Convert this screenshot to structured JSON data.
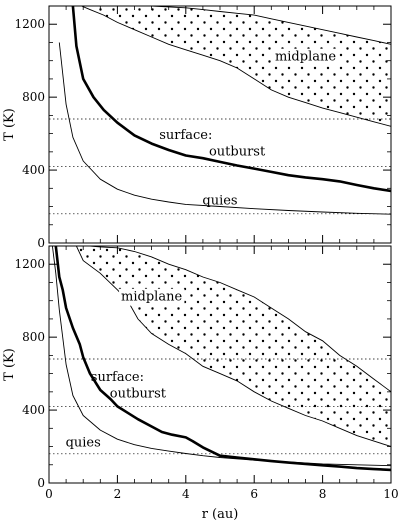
{
  "chart_data": [
    {
      "type": "line",
      "xlabel": "",
      "ylabel": "T (K)",
      "xlim": [
        0,
        10
      ],
      "ylim": [
        0,
        1300
      ],
      "x_ticks": [
        0,
        2,
        4,
        6,
        8,
        10
      ],
      "y_ticks": [
        0,
        400,
        800,
        1200
      ],
      "x_tick_labels": [
        "",
        "",
        "",
        "",
        "",
        ""
      ],
      "y_tick_labels": [
        "0",
        "400",
        "800",
        "1200"
      ],
      "reference_levels": [
        160,
        420,
        680,
        1300
      ],
      "series": [
        {
          "name": "quies",
          "style": "thin",
          "x": [
            0.3,
            0.5,
            0.7,
            1.0,
            1.5,
            2.0,
            2.5,
            3.0,
            3.5,
            4.0,
            5.0,
            6.0,
            7.0,
            8.0,
            9.0,
            10.0
          ],
          "y": [
            1100,
            760,
            580,
            450,
            350,
            295,
            262,
            240,
            225,
            212,
            200,
            188,
            178,
            170,
            163,
            158
          ]
        },
        {
          "name": "surface: outburst",
          "style": "thick",
          "x": [
            0.7,
            0.8,
            1.0,
            1.3,
            1.6,
            2.0,
            2.5,
            3.0,
            3.5,
            4.0,
            4.5,
            5.0,
            5.5,
            6.0,
            6.5,
            7.0,
            7.5,
            8.0,
            8.5,
            9.0,
            9.5,
            10.0
          ],
          "y": [
            1300,
            1080,
            900,
            800,
            730,
            660,
            590,
            545,
            510,
            480,
            465,
            445,
            425,
            408,
            390,
            372,
            360,
            350,
            338,
            318,
            300,
            285
          ]
        },
        {
          "name": "midplane",
          "style": "band",
          "x_upper": [
            3.0,
            3.5,
            4.0,
            4.5,
            5.0,
            5.5,
            6.0,
            6.5,
            7.0,
            7.5,
            8.0,
            8.5,
            9.0,
            9.5,
            10.0
          ],
          "y_upper": [
            1300,
            1295,
            1290,
            1280,
            1270,
            1260,
            1250,
            1230,
            1210,
            1190,
            1170,
            1150,
            1130,
            1110,
            1090
          ],
          "x_lower": [
            0.95,
            1.2,
            1.6,
            2.0,
            2.5,
            3.0,
            3.5,
            4.0,
            4.5,
            5.0,
            5.5,
            6.0,
            6.5,
            7.0,
            7.5,
            8.0,
            8.5,
            9.0,
            9.5,
            10.0
          ],
          "y_lower": [
            1300,
            1280,
            1250,
            1210,
            1170,
            1130,
            1090,
            1060,
            1030,
            1000,
            960,
            900,
            840,
            800,
            770,
            740,
            715,
            690,
            665,
            640
          ]
        }
      ],
      "annotations": [
        {
          "text": "midplane",
          "x": 7.5,
          "y": 1000
        },
        {
          "text": "surface:",
          "x": 4.0,
          "y": 570
        },
        {
          "text": "outburst",
          "x": 5.5,
          "y": 480
        },
        {
          "text": "quies",
          "x": 5.0,
          "y": 210
        }
      ]
    },
    {
      "type": "line",
      "xlabel": "r (au)",
      "ylabel": "T (K)",
      "xlim": [
        0,
        10
      ],
      "ylim": [
        0,
        1300
      ],
      "x_ticks": [
        0,
        2,
        4,
        6,
        8,
        10
      ],
      "y_ticks": [
        0,
        400,
        800,
        1200
      ],
      "x_tick_labels": [
        "0",
        "2",
        "4",
        "6",
        "8",
        "10"
      ],
      "y_tick_labels": [
        "0",
        "400",
        "800",
        "1200"
      ],
      "reference_levels": [
        160,
        420,
        680,
        1300
      ],
      "series": [
        {
          "name": "quies",
          "style": "thin",
          "x": [
            0.1,
            0.2,
            0.3,
            0.5,
            0.7,
            1.0,
            1.5,
            2.0,
            2.5,
            3.0,
            3.5,
            4.0,
            4.5,
            5.0,
            6.0,
            7.0,
            8.0,
            9.0,
            10.0
          ],
          "y": [
            1300,
            1150,
            950,
            650,
            480,
            370,
            290,
            240,
            210,
            190,
            175,
            162,
            150,
            140,
            125,
            115,
            105,
            100,
            95
          ]
        },
        {
          "name": "surface: outburst",
          "style": "thick",
          "x": [
            0.2,
            0.3,
            0.4,
            0.5,
            0.7,
            0.9,
            1.0,
            1.2,
            1.5,
            1.8,
            2.0,
            2.3,
            2.6,
            3.0,
            3.3,
            3.6,
            4.0,
            4.2,
            4.5,
            5.0,
            5.5,
            6.0,
            6.5,
            7.0,
            7.5,
            8.0,
            8.5,
            9.0,
            9.5,
            10.0
          ],
          "y": [
            1300,
            1130,
            1060,
            960,
            850,
            760,
            690,
            600,
            510,
            460,
            420,
            385,
            350,
            310,
            280,
            265,
            250,
            230,
            195,
            150,
            140,
            130,
            120,
            112,
            105,
            97,
            90,
            82,
            76,
            72
          ]
        },
        {
          "name": "midplane",
          "style": "band",
          "x_upper": [
            1.2,
            1.5,
            2.0,
            2.5,
            3.0,
            3.5,
            4.0,
            4.5,
            5.0,
            5.5,
            6.0,
            6.5,
            7.0,
            7.5,
            8.0,
            8.5,
            9.0,
            9.5,
            10.0
          ],
          "y_upper": [
            1300,
            1295,
            1290,
            1270,
            1240,
            1200,
            1170,
            1130,
            1100,
            1060,
            1020,
            960,
            900,
            830,
            780,
            700,
            640,
            570,
            500
          ],
          "x_lower": [
            0.8,
            1.0,
            1.5,
            2.0,
            2.3,
            2.6,
            3.0,
            3.5,
            4.0,
            4.5,
            5.0,
            5.5,
            6.0,
            6.5,
            7.0,
            7.5,
            8.0,
            8.5,
            9.0,
            9.5,
            10.0
          ],
          "y_lower": [
            1300,
            1220,
            1150,
            1060,
            1000,
            900,
            820,
            760,
            710,
            640,
            600,
            560,
            500,
            450,
            410,
            370,
            340,
            300,
            260,
            230,
            200
          ]
        }
      ],
      "annotations": [
        {
          "text": "midplane",
          "x": 3.0,
          "y": 1000
        },
        {
          "text": "surface:",
          "x": 2.0,
          "y": 560
        },
        {
          "text": "outburst",
          "x": 2.6,
          "y": 470
        },
        {
          "text": "quies",
          "x": 1.0,
          "y": 200
        }
      ]
    }
  ]
}
